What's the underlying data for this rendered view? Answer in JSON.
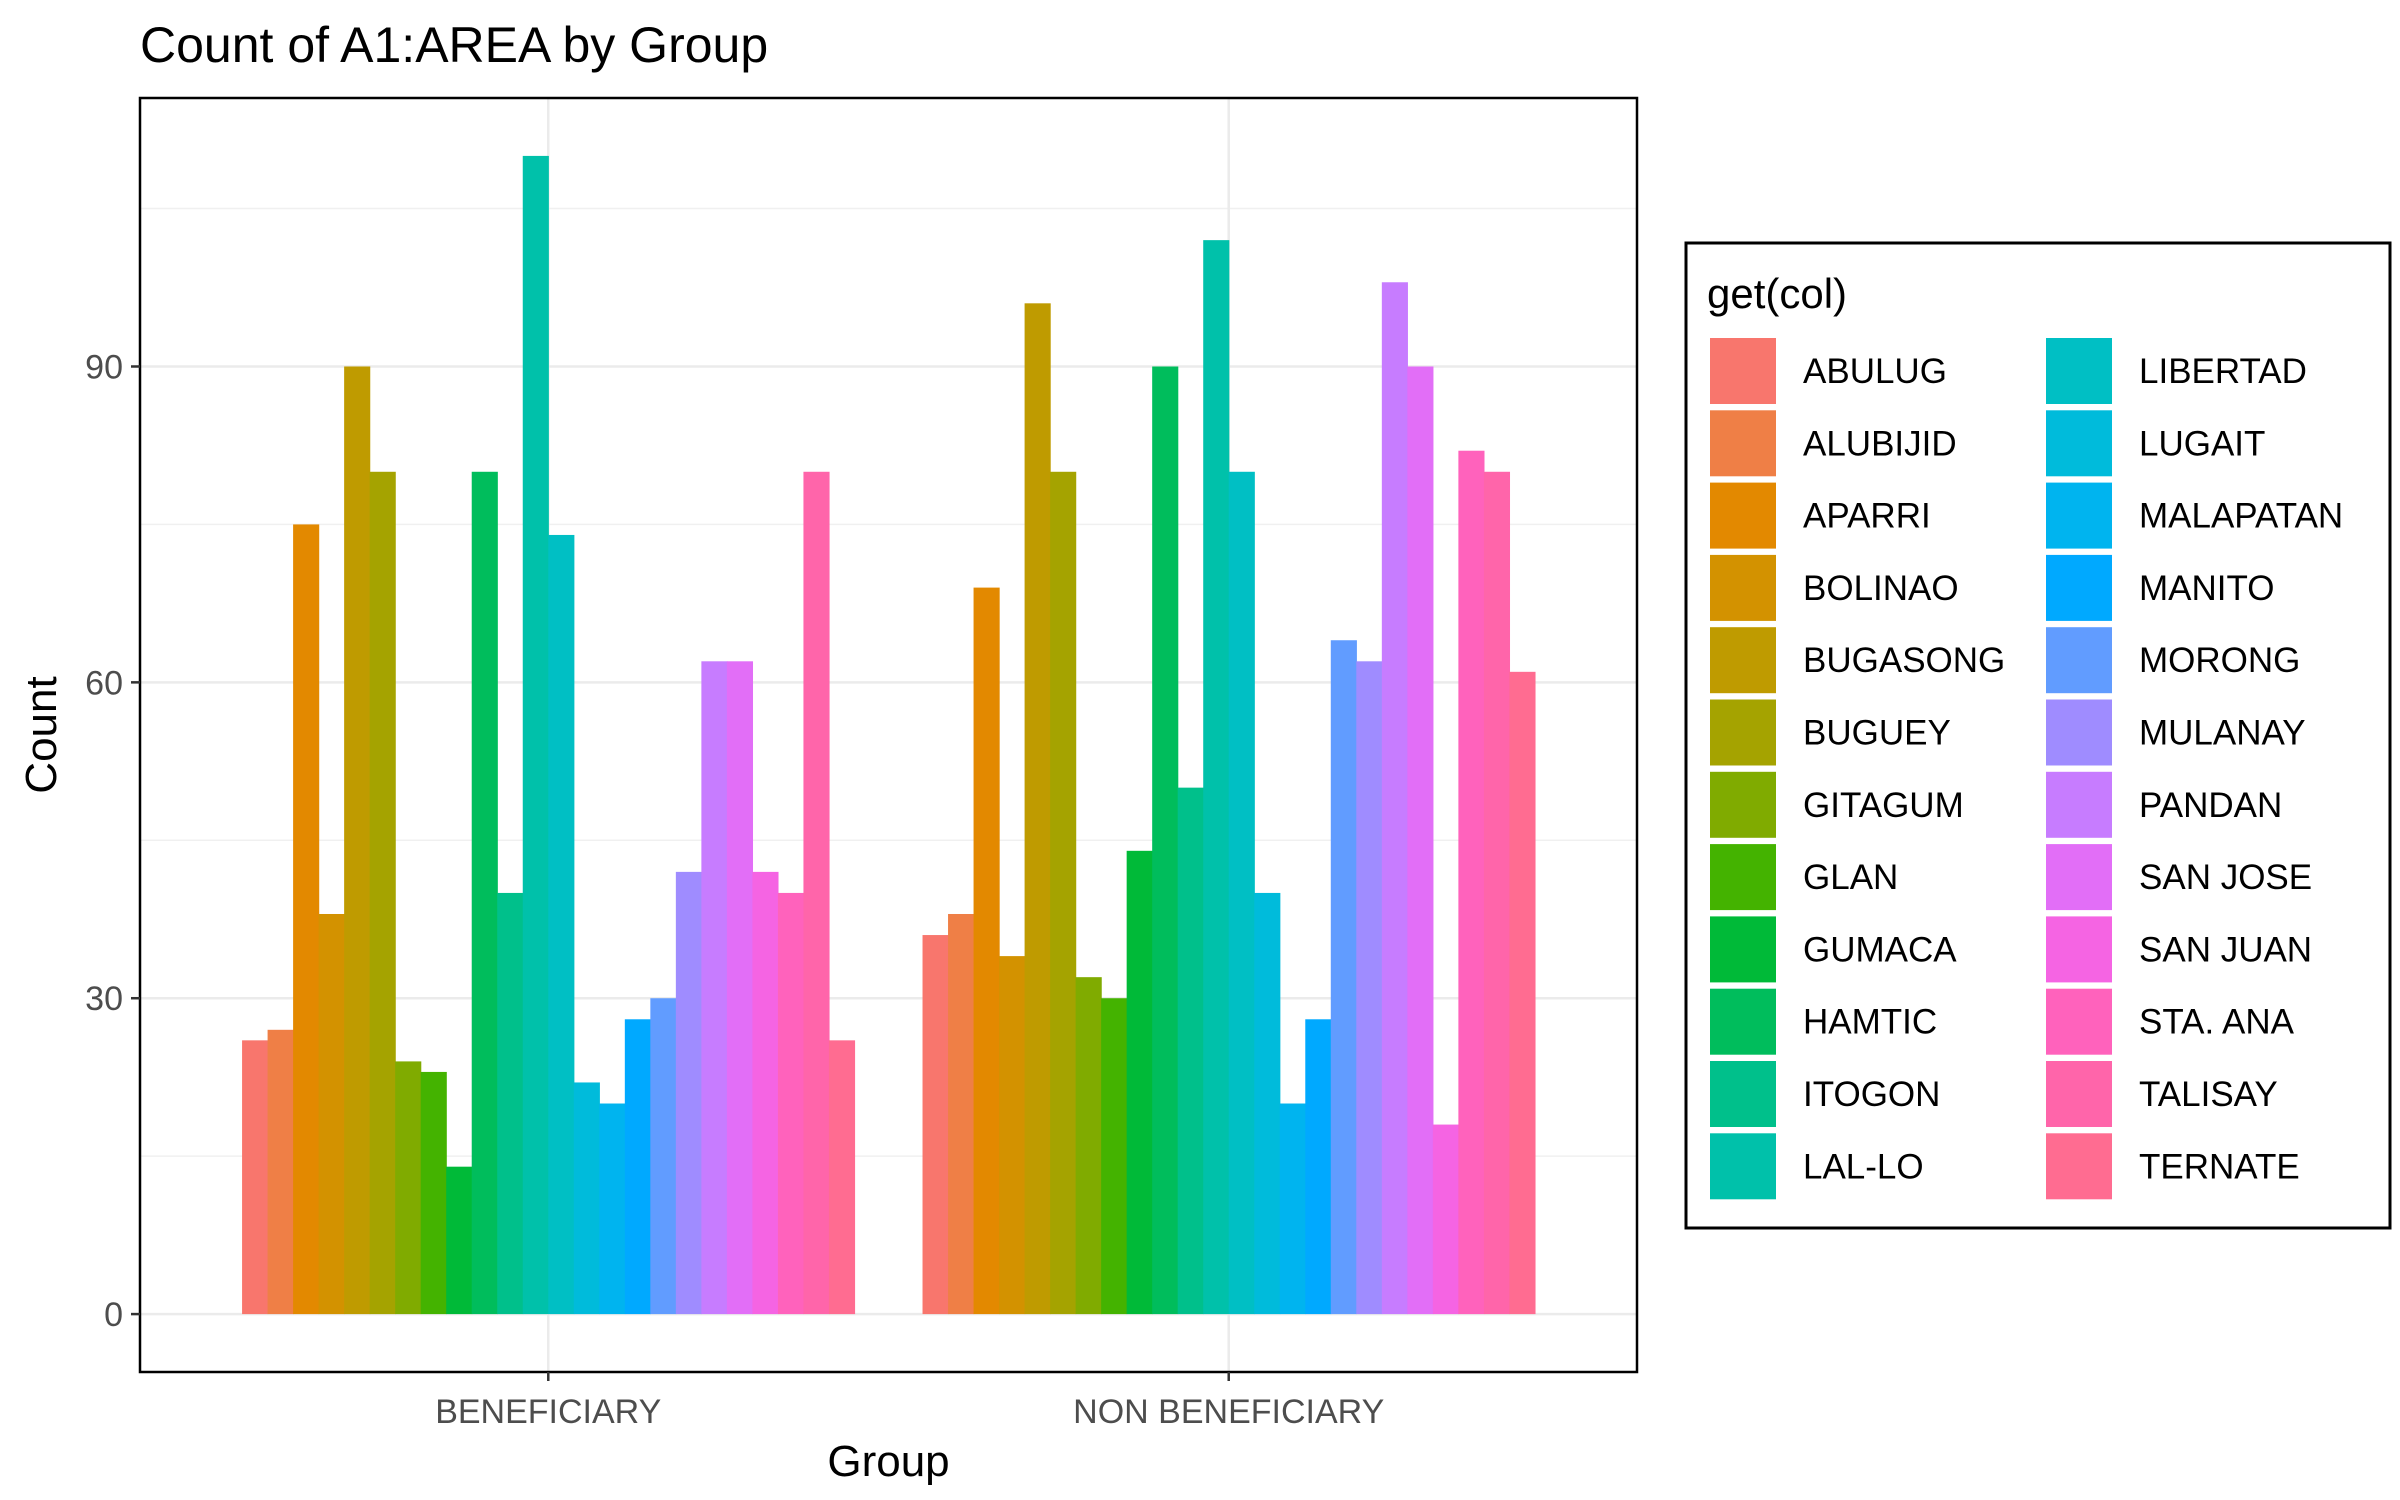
{
  "chart_data": {
    "type": "bar",
    "title": "Count of A1:AREA by Group",
    "xlabel": "Group",
    "ylabel": "Count",
    "categories": [
      "BENEFICIARY",
      "NON BENEFICIARY"
    ],
    "ylim": [
      -5.5,
      115.5
    ],
    "yticks": [
      0,
      30,
      60,
      90
    ],
    "grid": true,
    "legend": {
      "title": "get(col)",
      "placement": "right",
      "columns": 2
    },
    "series": [
      {
        "name": "ABULUG",
        "color": "#F8766D",
        "values": [
          26,
          36
        ]
      },
      {
        "name": "ALUBIJID",
        "color": "#EF7F46",
        "values": [
          27,
          38
        ]
      },
      {
        "name": "APARRI",
        "color": "#E38900",
        "values": [
          75,
          69
        ]
      },
      {
        "name": "BOLINAO",
        "color": "#D39200",
        "values": [
          38,
          34
        ]
      },
      {
        "name": "BUGASONG",
        "color": "#BF9B00",
        "values": [
          90,
          96
        ]
      },
      {
        "name": "BUGUEY",
        "color": "#A5A300",
        "values": [
          80,
          80
        ]
      },
      {
        "name": "GITAGUM",
        "color": "#80AB00",
        "values": [
          24,
          32
        ]
      },
      {
        "name": "GLAN",
        "color": "#44B300",
        "values": [
          23,
          30
        ]
      },
      {
        "name": "GUMACA",
        "color": "#00BA38",
        "values": [
          14,
          44
        ]
      },
      {
        "name": "HAMTIC",
        "color": "#00BD5C",
        "values": [
          80,
          90
        ]
      },
      {
        "name": "ITOGON",
        "color": "#00C08B",
        "values": [
          40,
          50
        ]
      },
      {
        "name": "LAL-LO",
        "color": "#00C1AA",
        "values": [
          110,
          102
        ]
      },
      {
        "name": "LIBERTAD",
        "color": "#00BFC4",
        "values": [
          74,
          80
        ]
      },
      {
        "name": "LUGAIT",
        "color": "#00BBDB",
        "values": [
          22,
          40
        ]
      },
      {
        "name": "MALAPATAN",
        "color": "#00B4EF",
        "values": [
          20,
          20
        ]
      },
      {
        "name": "MANITO",
        "color": "#00A9FF",
        "values": [
          28,
          28
        ]
      },
      {
        "name": "MORONG",
        "color": "#619CFF",
        "values": [
          30,
          64
        ]
      },
      {
        "name": "MULANAY",
        "color": "#9F8CFF",
        "values": [
          42,
          62
        ]
      },
      {
        "name": "PANDAN",
        "color": "#C77CFF",
        "values": [
          62,
          98
        ]
      },
      {
        "name": "SAN JOSE",
        "color": "#E26EF7",
        "values": [
          62,
          90
        ]
      },
      {
        "name": "SAN JUAN",
        "color": "#F564E3",
        "values": [
          42,
          18
        ]
      },
      {
        "name": "STA. ANA",
        "color": "#FF62BC",
        "values": [
          40,
          82
        ]
      },
      {
        "name": "TALISAY",
        "color": "#FF65AA",
        "values": [
          80,
          80
        ]
      },
      {
        "name": "TERNATE",
        "color": "#FF6C91",
        "values": [
          26,
          61
        ]
      }
    ]
  }
}
